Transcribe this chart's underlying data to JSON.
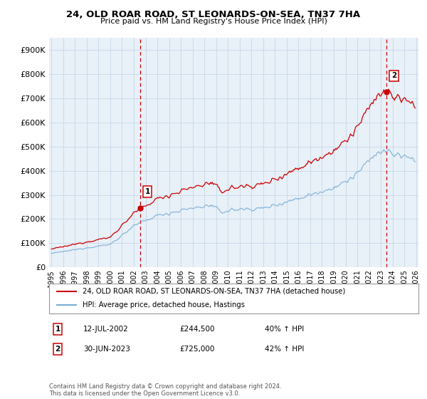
{
  "title": "24, OLD ROAR ROAD, ST LEONARDS-ON-SEA, TN37 7HA",
  "subtitle": "Price paid vs. HM Land Registry's House Price Index (HPI)",
  "legend_line1": "24, OLD ROAR ROAD, ST LEONARDS-ON-SEA, TN37 7HA (detached house)",
  "legend_line2": "HPI: Average price, detached house, Hastings",
  "sale1_date": "12-JUL-2002",
  "sale1_price": 244500,
  "sale1_label": "40% ↑ HPI",
  "sale2_date": "30-JUN-2023",
  "sale2_price": 725000,
  "sale2_label": "42% ↑ HPI",
  "footnote": "Contains HM Land Registry data © Crown copyright and database right 2024.\nThis data is licensed under the Open Government Licence v3.0.",
  "sale1_x": 2002.54,
  "sale2_x": 2023.49,
  "red_color": "#cc0000",
  "blue_color": "#7aaed4",
  "background_color": "#ffffff",
  "chart_bg_color": "#e8f0f8",
  "grid_color": "#c8d8e8",
  "xmin": 1994.8,
  "xmax": 2026.2,
  "ymin": 0,
  "ymax": 950000
}
